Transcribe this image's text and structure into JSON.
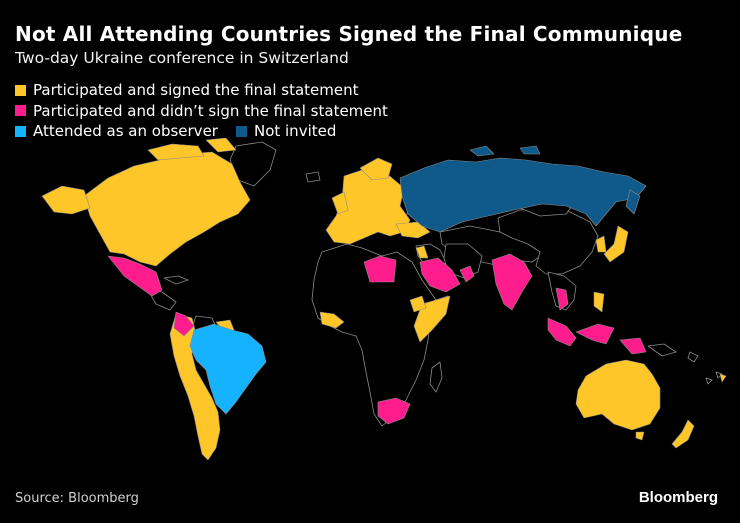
{
  "header": {
    "title": "Not All Attending Countries Signed the Final Communique",
    "subtitle": "Two-day Ukraine conference in Switzerland"
  },
  "legend": {
    "items": [
      {
        "label": "Participated and signed the final statement",
        "color": "#ffc629"
      },
      {
        "label": "Participated and didn’t sign the final statement",
        "color": "#ff1d8e"
      },
      {
        "label": "Attended as an observer",
        "color": "#15b3ff"
      },
      {
        "label": "Not invited",
        "color": "#0f5a8a"
      }
    ]
  },
  "map": {
    "background_color": "#000000",
    "other_countries_color": "#000000",
    "border_color": "#8a8a8a"
  },
  "footer": {
    "source": "Source: Bloomberg",
    "brand": "Bloomberg"
  }
}
